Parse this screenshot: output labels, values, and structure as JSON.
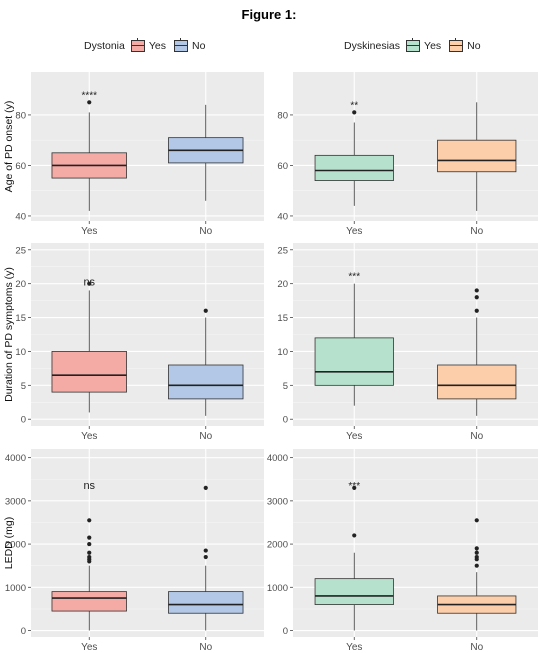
{
  "figure": {
    "title": "Figure 1:"
  },
  "legends": [
    {
      "title": "Dystonia",
      "items": [
        {
          "label": "Yes",
          "color": "#F4AAA5"
        },
        {
          "label": "No",
          "color": "#B3C8E6"
        }
      ]
    },
    {
      "title": "Dyskinesias",
      "items": [
        {
          "label": "Yes",
          "color": "#B6E2CD"
        },
        {
          "label": "No",
          "color": "#FCCEAA"
        }
      ]
    }
  ],
  "chart_data": [
    {
      "type": "box",
      "row": 0,
      "col": 0,
      "ylabel": "Age of PD onset (y)",
      "categories": [
        "Yes",
        "No"
      ],
      "ylim": [
        38,
        97
      ],
      "yticks": [
        40,
        60,
        80
      ],
      "colors": [
        "#F4AAA5",
        "#B3C8E6"
      ],
      "annotation": "****",
      "boxes": [
        {
          "q1": 55,
          "median": 60,
          "q3": 65,
          "whisker_low": 42,
          "whisker_high": 81,
          "outliers": [
            85
          ]
        },
        {
          "q1": 61,
          "median": 66,
          "q3": 71,
          "whisker_low": 46,
          "whisker_high": 84,
          "outliers": []
        }
      ]
    },
    {
      "type": "box",
      "row": 0,
      "col": 1,
      "ylabel": "",
      "categories": [
        "Yes",
        "No"
      ],
      "ylim": [
        38,
        97
      ],
      "yticks": [
        40,
        60,
        80
      ],
      "colors": [
        "#B6E2CD",
        "#FCCEAA"
      ],
      "annotation": "**",
      "boxes": [
        {
          "q1": 54,
          "median": 58,
          "q3": 64,
          "whisker_low": 44,
          "whisker_high": 77,
          "outliers": [
            81
          ]
        },
        {
          "q1": 57.5,
          "median": 62,
          "q3": 70,
          "whisker_low": 42,
          "whisker_high": 85,
          "outliers": []
        }
      ]
    },
    {
      "type": "box",
      "row": 1,
      "col": 0,
      "ylabel": "Duration of PD symptoms (y)",
      "categories": [
        "Yes",
        "No"
      ],
      "ylim": [
        -1,
        26
      ],
      "yticks": [
        0,
        5,
        10,
        15,
        20,
        25
      ],
      "colors": [
        "#F4AAA5",
        "#B3C8E6"
      ],
      "annotation": "ns",
      "boxes": [
        {
          "q1": 4,
          "median": 6.5,
          "q3": 10,
          "whisker_low": 1,
          "whisker_high": 19,
          "outliers": [
            20
          ]
        },
        {
          "q1": 3,
          "median": 5,
          "q3": 8,
          "whisker_low": 0.5,
          "whisker_high": 15,
          "outliers": [
            16
          ]
        }
      ]
    },
    {
      "type": "box",
      "row": 1,
      "col": 1,
      "ylabel": "",
      "categories": [
        "Yes",
        "No"
      ],
      "ylim": [
        -1,
        26
      ],
      "yticks": [
        0,
        5,
        10,
        15,
        20,
        25
      ],
      "colors": [
        "#B6E2CD",
        "#FCCEAA"
      ],
      "annotation": "***",
      "boxes": [
        {
          "q1": 5,
          "median": 7,
          "q3": 12,
          "whisker_low": 2,
          "whisker_high": 20,
          "outliers": []
        },
        {
          "q1": 3,
          "median": 5,
          "q3": 8,
          "whisker_low": 0.5,
          "whisker_high": 15,
          "outliers": [
            16,
            18,
            19
          ]
        }
      ]
    },
    {
      "type": "box",
      "row": 2,
      "col": 0,
      "ylabel": "LEDD (mg)",
      "categories": [
        "Yes",
        "No"
      ],
      "ylim": [
        -150,
        4200
      ],
      "yticks": [
        0,
        1000,
        2000,
        3000,
        4000
      ],
      "colors": [
        "#F4AAA5",
        "#B3C8E6"
      ],
      "annotation": "ns",
      "boxes": [
        {
          "q1": 450,
          "median": 750,
          "q3": 900,
          "whisker_low": 0,
          "whisker_high": 1500,
          "outliers": [
            1600,
            1650,
            1700,
            1800,
            2000,
            2150,
            2550
          ]
        },
        {
          "q1": 400,
          "median": 600,
          "q3": 900,
          "whisker_low": 0,
          "whisker_high": 1500,
          "outliers": [
            1700,
            1850,
            3300
          ]
        }
      ]
    },
    {
      "type": "box",
      "row": 2,
      "col": 1,
      "ylabel": "",
      "categories": [
        "Yes",
        "No"
      ],
      "ylim": [
        -150,
        4200
      ],
      "yticks": [
        0,
        1000,
        2000,
        3000,
        4000
      ],
      "colors": [
        "#B6E2CD",
        "#FCCEAA"
      ],
      "annotation": "***",
      "boxes": [
        {
          "q1": 600,
          "median": 800,
          "q3": 1200,
          "whisker_low": 0,
          "whisker_high": 1800,
          "outliers": [
            2200,
            3300
          ]
        },
        {
          "q1": 400,
          "median": 600,
          "q3": 800,
          "whisker_low": 0,
          "whisker_high": 1350,
          "outliers": [
            1500,
            1650,
            1700,
            1800,
            1900,
            2550
          ]
        }
      ]
    }
  ]
}
